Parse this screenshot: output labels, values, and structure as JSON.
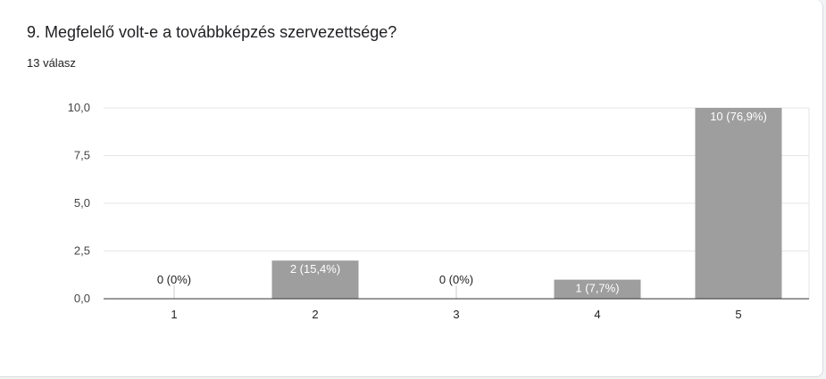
{
  "question": {
    "title": "9. Megfelelő volt-e a továbbképzés szervezettsége?",
    "responses": "13 válasz"
  },
  "chart_data": {
    "type": "bar",
    "categories": [
      "1",
      "2",
      "3",
      "4",
      "5"
    ],
    "values": [
      0,
      2,
      0,
      1,
      10
    ],
    "data_labels": [
      "0 (0%)",
      "2 (15,4%)",
      "0 (0%)",
      "1 (7,7%)",
      "10 (76,9%)"
    ],
    "y_ticks": [
      "0,0",
      "2,5",
      "5,0",
      "7,5",
      "10,0"
    ],
    "ylim": [
      0,
      10
    ],
    "grid": true,
    "bar_color": "#9e9e9e"
  }
}
